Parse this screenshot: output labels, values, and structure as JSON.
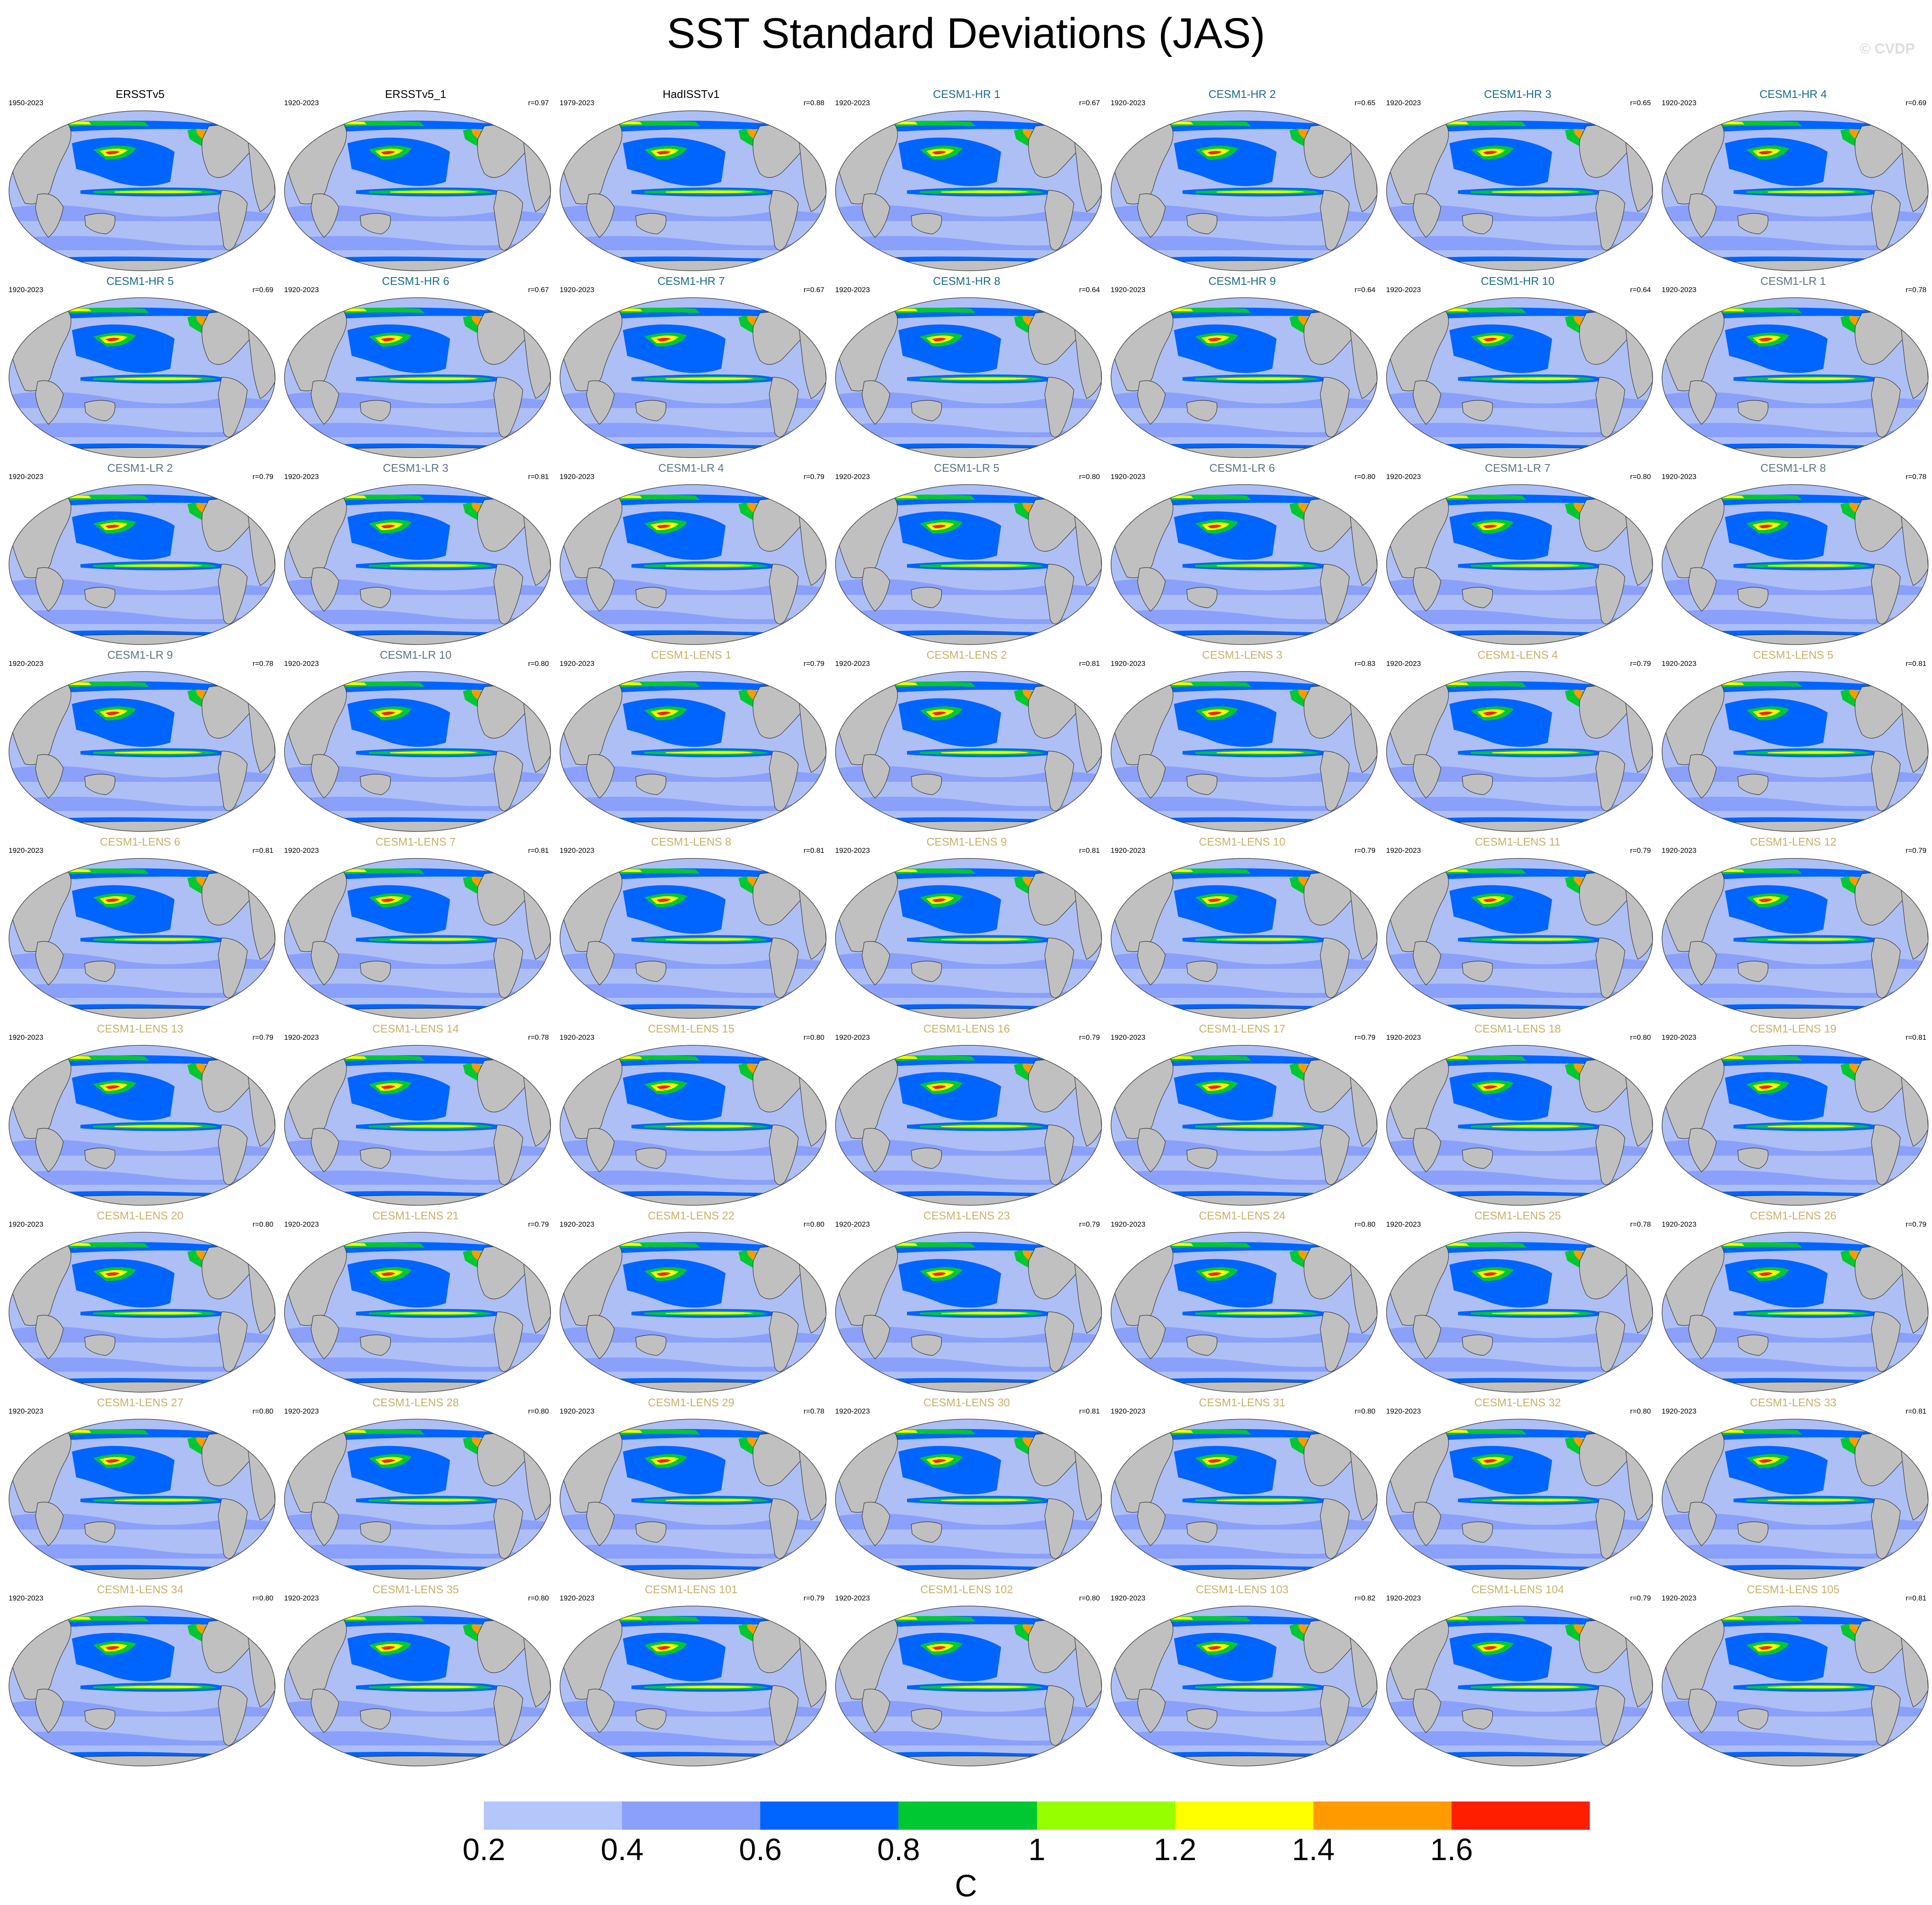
{
  "title": "SST Standard Deviations (JAS)",
  "copyright": "© CVDP",
  "title_colors": {
    "observations": "#000000",
    "hr": "#1a6b8a",
    "lr": "#5a7480",
    "lens": "#c8b06a"
  },
  "map_colors": {
    "land": "#c0c0c0",
    "ocean": "#aebff5",
    "coast": "#333333"
  },
  "panels": [
    {
      "title": "ERSSTv5",
      "years": "1950-2023",
      "corr": "",
      "group": "observations"
    },
    {
      "title": "ERSSTv5_1",
      "years": "1920-2023",
      "corr": "r=0.97",
      "group": "observations"
    },
    {
      "title": "HadISSTv1",
      "years": "1979-2023",
      "corr": "r=0.88",
      "group": "observations"
    },
    {
      "title": "CESM1-HR 1",
      "years": "1920-2023",
      "corr": "r=0.67",
      "group": "hr"
    },
    {
      "title": "CESM1-HR 2",
      "years": "1920-2023",
      "corr": "r=0.65",
      "group": "hr"
    },
    {
      "title": "CESM1-HR 3",
      "years": "1920-2023",
      "corr": "r=0.65",
      "group": "hr"
    },
    {
      "title": "CESM1-HR 4",
      "years": "1920-2023",
      "corr": "r=0.69",
      "group": "hr"
    },
    {
      "title": "CESM1-HR 5",
      "years": "1920-2023",
      "corr": "r=0.69",
      "group": "hr"
    },
    {
      "title": "CESM1-HR 6",
      "years": "1920-2023",
      "corr": "r=0.67",
      "group": "hr"
    },
    {
      "title": "CESM1-HR 7",
      "years": "1920-2023",
      "corr": "r=0.67",
      "group": "hr"
    },
    {
      "title": "CESM1-HR 8",
      "years": "1920-2023",
      "corr": "r=0.64",
      "group": "hr"
    },
    {
      "title": "CESM1-HR 9",
      "years": "1920-2023",
      "corr": "r=0.64",
      "group": "hr"
    },
    {
      "title": "CESM1-HR 10",
      "years": "1920-2023",
      "corr": "r=0.64",
      "group": "hr"
    },
    {
      "title": "CESM1-LR 1",
      "years": "1920-2023",
      "corr": "r=0.78",
      "group": "lr"
    },
    {
      "title": "CESM1-LR 2",
      "years": "1920-2023",
      "corr": "r=0.79",
      "group": "lr"
    },
    {
      "title": "CESM1-LR 3",
      "years": "1920-2023",
      "corr": "r=0.81",
      "group": "lr"
    },
    {
      "title": "CESM1-LR 4",
      "years": "1920-2023",
      "corr": "r=0.79",
      "group": "lr"
    },
    {
      "title": "CESM1-LR 5",
      "years": "1920-2023",
      "corr": "r=0.80",
      "group": "lr"
    },
    {
      "title": "CESM1-LR 6",
      "years": "1920-2023",
      "corr": "r=0.80",
      "group": "lr"
    },
    {
      "title": "CESM1-LR 7",
      "years": "1920-2023",
      "corr": "r=0.80",
      "group": "lr"
    },
    {
      "title": "CESM1-LR 8",
      "years": "1920-2023",
      "corr": "r=0.78",
      "group": "lr"
    },
    {
      "title": "CESM1-LR 9",
      "years": "1920-2023",
      "corr": "r=0.78",
      "group": "lr"
    },
    {
      "title": "CESM1-LR 10",
      "years": "1920-2023",
      "corr": "r=0.80",
      "group": "lr"
    },
    {
      "title": "CESM1-LENS 1",
      "years": "1920-2023",
      "corr": "r=0.79",
      "group": "lens"
    },
    {
      "title": "CESM1-LENS 2",
      "years": "1920-2023",
      "corr": "r=0.81",
      "group": "lens"
    },
    {
      "title": "CESM1-LENS 3",
      "years": "1920-2023",
      "corr": "r=0.83",
      "group": "lens"
    },
    {
      "title": "CESM1-LENS 4",
      "years": "1920-2023",
      "corr": "r=0.79",
      "group": "lens"
    },
    {
      "title": "CESM1-LENS 5",
      "years": "1920-2023",
      "corr": "r=0.81",
      "group": "lens"
    },
    {
      "title": "CESM1-LENS 6",
      "years": "1920-2023",
      "corr": "r=0.81",
      "group": "lens"
    },
    {
      "title": "CESM1-LENS 7",
      "years": "1920-2023",
      "corr": "r=0.81",
      "group": "lens"
    },
    {
      "title": "CESM1-LENS 8",
      "years": "1920-2023",
      "corr": "r=0.81",
      "group": "lens"
    },
    {
      "title": "CESM1-LENS 9",
      "years": "1920-2023",
      "corr": "r=0.81",
      "group": "lens"
    },
    {
      "title": "CESM1-LENS 10",
      "years": "1920-2023",
      "corr": "r=0.79",
      "group": "lens"
    },
    {
      "title": "CESM1-LENS 11",
      "years": "1920-2023",
      "corr": "r=0.79",
      "group": "lens"
    },
    {
      "title": "CESM1-LENS 12",
      "years": "1920-2023",
      "corr": "r=0.79",
      "group": "lens"
    },
    {
      "title": "CESM1-LENS 13",
      "years": "1920-2023",
      "corr": "r=0.79",
      "group": "lens"
    },
    {
      "title": "CESM1-LENS 14",
      "years": "1920-2023",
      "corr": "r=0.78",
      "group": "lens"
    },
    {
      "title": "CESM1-LENS 15",
      "years": "1920-2023",
      "corr": "r=0.80",
      "group": "lens"
    },
    {
      "title": "CESM1-LENS 16",
      "years": "1920-2023",
      "corr": "r=0.79",
      "group": "lens"
    },
    {
      "title": "CESM1-LENS 17",
      "years": "1920-2023",
      "corr": "r=0.79",
      "group": "lens"
    },
    {
      "title": "CESM1-LENS 18",
      "years": "1920-2023",
      "corr": "r=0.80",
      "group": "lens"
    },
    {
      "title": "CESM1-LENS 19",
      "years": "1920-2023",
      "corr": "r=0.81",
      "group": "lens"
    },
    {
      "title": "CESM1-LENS 20",
      "years": "1920-2023",
      "corr": "r=0.80",
      "group": "lens"
    },
    {
      "title": "CESM1-LENS 21",
      "years": "1920-2023",
      "corr": "r=0.79",
      "group": "lens"
    },
    {
      "title": "CESM1-LENS 22",
      "years": "1920-2023",
      "corr": "r=0.80",
      "group": "lens"
    },
    {
      "title": "CESM1-LENS 23",
      "years": "1920-2023",
      "corr": "r=0.79",
      "group": "lens"
    },
    {
      "title": "CESM1-LENS 24",
      "years": "1920-2023",
      "corr": "r=0.80",
      "group": "lens"
    },
    {
      "title": "CESM1-LENS 25",
      "years": "1920-2023",
      "corr": "r=0.78",
      "group": "lens"
    },
    {
      "title": "CESM1-LENS 26",
      "years": "1920-2023",
      "corr": "r=0.79",
      "group": "lens"
    },
    {
      "title": "CESM1-LENS 27",
      "years": "1920-2023",
      "corr": "r=0.80",
      "group": "lens"
    },
    {
      "title": "CESM1-LENS 28",
      "years": "1920-2023",
      "corr": "r=0.80",
      "group": "lens"
    },
    {
      "title": "CESM1-LENS 29",
      "years": "1920-2023",
      "corr": "r=0.78",
      "group": "lens"
    },
    {
      "title": "CESM1-LENS 30",
      "years": "1920-2023",
      "corr": "r=0.81",
      "group": "lens"
    },
    {
      "title": "CESM1-LENS 31",
      "years": "1920-2023",
      "corr": "r=0.80",
      "group": "lens"
    },
    {
      "title": "CESM1-LENS 32",
      "years": "1920-2023",
      "corr": "r=0.80",
      "group": "lens"
    },
    {
      "title": "CESM1-LENS 33",
      "years": "1920-2023",
      "corr": "r=0.81",
      "group": "lens"
    },
    {
      "title": "CESM1-LENS 34",
      "years": "1920-2023",
      "corr": "r=0.80",
      "group": "lens"
    },
    {
      "title": "CESM1-LENS 35",
      "years": "1920-2023",
      "corr": "r=0.80",
      "group": "lens"
    },
    {
      "title": "CESM1-LENS 101",
      "years": "1920-2023",
      "corr": "r=0.79",
      "group": "lens"
    },
    {
      "title": "CESM1-LENS 102",
      "years": "1920-2023",
      "corr": "r=0.80",
      "group": "lens"
    },
    {
      "title": "CESM1-LENS 103",
      "years": "1920-2023",
      "corr": "r=0.82",
      "group": "lens"
    },
    {
      "title": "CESM1-LENS 104",
      "years": "1920-2023",
      "corr": "r=0.79",
      "group": "lens"
    },
    {
      "title": "CESM1-LENS 105",
      "years": "1920-2023",
      "corr": "r=0.81",
      "group": "lens"
    }
  ],
  "colorbar": {
    "colors": [
      "#ffffff",
      "#b4c6fa",
      "#8aa0fa",
      "#0064ff",
      "#00c832",
      "#96ff00",
      "#ffff00",
      "#ff9b00",
      "#ff1e00"
    ],
    "labels": [
      "0.2",
      "0.4",
      "0.6",
      "0.8",
      "1",
      "1.2",
      "1.4",
      "1.6"
    ],
    "units": "C"
  }
}
